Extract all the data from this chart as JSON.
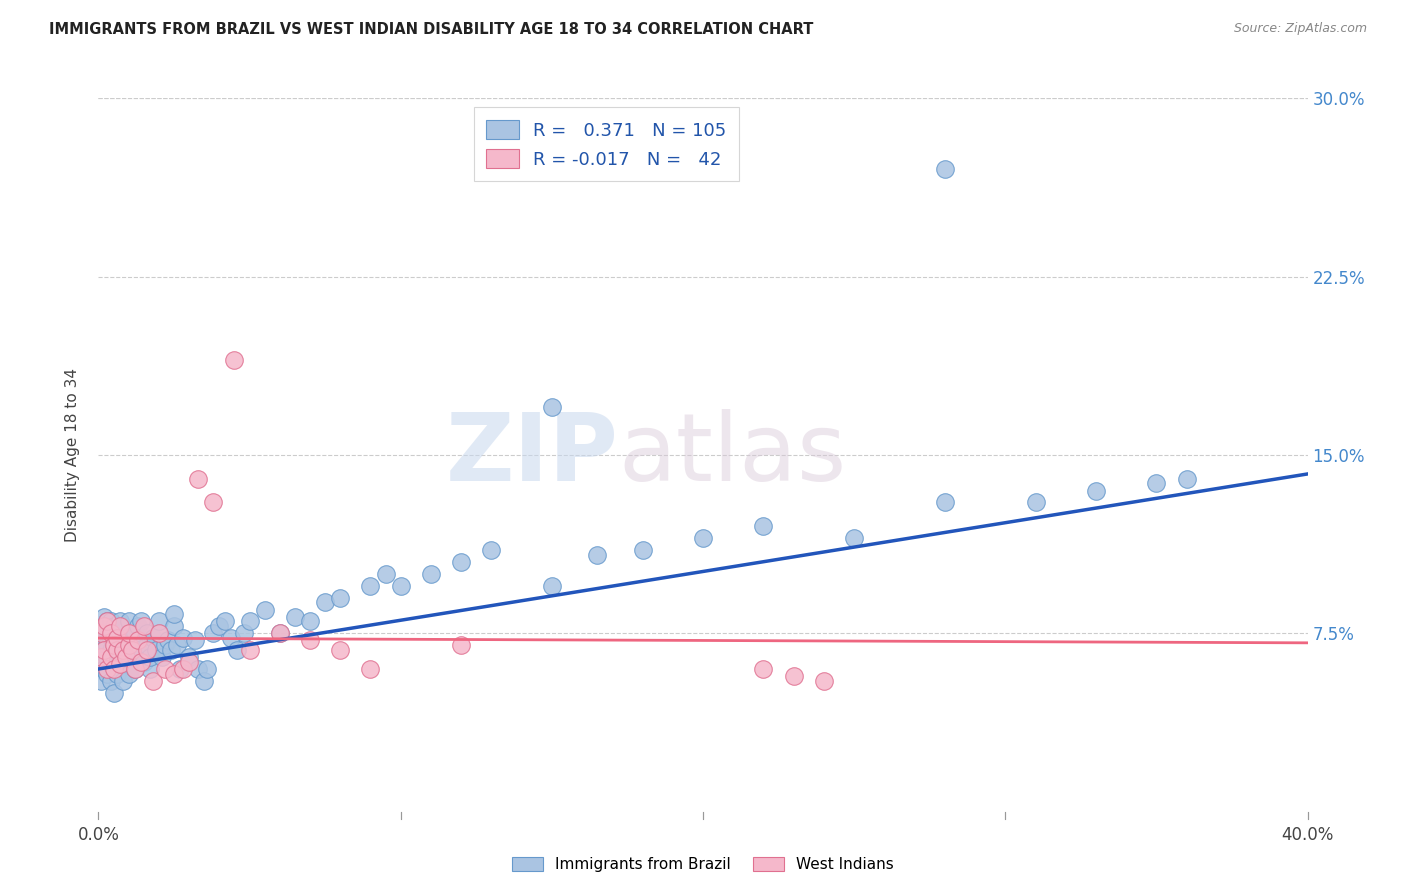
{
  "title": "IMMIGRANTS FROM BRAZIL VS WEST INDIAN DISABILITY AGE 18 TO 34 CORRELATION CHART",
  "source": "Source: ZipAtlas.com",
  "ylabel": "Disability Age 18 to 34",
  "xlim": [
    0.0,
    0.4
  ],
  "ylim": [
    0.0,
    0.3
  ],
  "xticks": [
    0.0,
    0.1,
    0.2,
    0.3,
    0.4
  ],
  "yticks": [
    0.075,
    0.15,
    0.225,
    0.3
  ],
  "ytick_labels": [
    "7.5%",
    "15.0%",
    "22.5%",
    "30.0%"
  ],
  "xtick_labels": [
    "0.0%",
    "",
    "",
    "",
    "40.0%"
  ],
  "brazil_color": "#aac4e2",
  "brazil_edge": "#6699cc",
  "west_indian_color": "#f5b8cb",
  "west_indian_edge": "#e07090",
  "brazil_R": 0.371,
  "brazil_N": 105,
  "west_indian_R": -0.017,
  "west_indian_N": 42,
  "brazil_line_color": "#2255bb",
  "west_indian_line_color": "#ee6680",
  "watermark_part1": "ZIP",
  "watermark_part2": "atlas",
  "legend_brazil": "Immigrants from Brazil",
  "legend_west_indian": "West Indians",
  "brazil_line_x0": 0.0,
  "brazil_line_y0": 0.06,
  "brazil_line_x1": 0.4,
  "brazil_line_y1": 0.142,
  "wi_line_x0": 0.0,
  "wi_line_y0": 0.073,
  "wi_line_x1": 0.4,
  "wi_line_y1": 0.071,
  "brazil_points_x": [
    0.001,
    0.001,
    0.001,
    0.002,
    0.002,
    0.002,
    0.002,
    0.002,
    0.003,
    0.003,
    0.003,
    0.003,
    0.003,
    0.004,
    0.004,
    0.004,
    0.004,
    0.004,
    0.005,
    0.005,
    0.005,
    0.005,
    0.005,
    0.005,
    0.006,
    0.006,
    0.006,
    0.006,
    0.007,
    0.007,
    0.007,
    0.007,
    0.008,
    0.008,
    0.008,
    0.008,
    0.009,
    0.009,
    0.009,
    0.01,
    0.01,
    0.01,
    0.011,
    0.011,
    0.012,
    0.012,
    0.013,
    0.013,
    0.014,
    0.014,
    0.015,
    0.016,
    0.016,
    0.017,
    0.017,
    0.018,
    0.019,
    0.02,
    0.02,
    0.021,
    0.022,
    0.023,
    0.024,
    0.025,
    0.025,
    0.026,
    0.027,
    0.028,
    0.03,
    0.032,
    0.033,
    0.035,
    0.036,
    0.038,
    0.04,
    0.042,
    0.044,
    0.046,
    0.048,
    0.05,
    0.055,
    0.06,
    0.065,
    0.07,
    0.075,
    0.08,
    0.09,
    0.095,
    0.1,
    0.11,
    0.12,
    0.13,
    0.15,
    0.165,
    0.18,
    0.2,
    0.22,
    0.25,
    0.28,
    0.31,
    0.33,
    0.35,
    0.36,
    0.28,
    0.15
  ],
  "brazil_points_y": [
    0.072,
    0.062,
    0.055,
    0.065,
    0.07,
    0.075,
    0.082,
    0.06,
    0.065,
    0.07,
    0.075,
    0.08,
    0.058,
    0.062,
    0.068,
    0.073,
    0.055,
    0.08,
    0.06,
    0.065,
    0.07,
    0.075,
    0.078,
    0.05,
    0.063,
    0.068,
    0.073,
    0.058,
    0.065,
    0.07,
    0.075,
    0.08,
    0.062,
    0.068,
    0.073,
    0.055,
    0.063,
    0.068,
    0.073,
    0.058,
    0.065,
    0.08,
    0.068,
    0.073,
    0.06,
    0.075,
    0.068,
    0.078,
    0.065,
    0.08,
    0.063,
    0.07,
    0.075,
    0.06,
    0.065,
    0.073,
    0.068,
    0.075,
    0.08,
    0.065,
    0.07,
    0.072,
    0.068,
    0.078,
    0.083,
    0.07,
    0.06,
    0.073,
    0.065,
    0.072,
    0.06,
    0.055,
    0.06,
    0.075,
    0.078,
    0.08,
    0.073,
    0.068,
    0.075,
    0.08,
    0.085,
    0.075,
    0.082,
    0.08,
    0.088,
    0.09,
    0.095,
    0.1,
    0.095,
    0.1,
    0.105,
    0.11,
    0.095,
    0.108,
    0.11,
    0.115,
    0.12,
    0.115,
    0.13,
    0.13,
    0.135,
    0.138,
    0.14,
    0.27,
    0.17
  ],
  "west_indian_points_x": [
    0.001,
    0.001,
    0.002,
    0.002,
    0.003,
    0.003,
    0.004,
    0.004,
    0.005,
    0.005,
    0.006,
    0.006,
    0.007,
    0.007,
    0.008,
    0.009,
    0.01,
    0.01,
    0.011,
    0.012,
    0.013,
    0.014,
    0.015,
    0.016,
    0.018,
    0.02,
    0.022,
    0.025,
    0.028,
    0.03,
    0.033,
    0.038,
    0.045,
    0.05,
    0.06,
    0.07,
    0.08,
    0.09,
    0.12,
    0.22,
    0.23,
    0.24
  ],
  "west_indian_points_y": [
    0.065,
    0.075,
    0.068,
    0.078,
    0.06,
    0.08,
    0.065,
    0.075,
    0.06,
    0.07,
    0.068,
    0.073,
    0.062,
    0.078,
    0.068,
    0.065,
    0.07,
    0.075,
    0.068,
    0.06,
    0.072,
    0.063,
    0.078,
    0.068,
    0.055,
    0.075,
    0.06,
    0.058,
    0.06,
    0.063,
    0.14,
    0.13,
    0.19,
    0.068,
    0.075,
    0.072,
    0.068,
    0.06,
    0.07,
    0.06,
    0.057,
    0.055
  ]
}
